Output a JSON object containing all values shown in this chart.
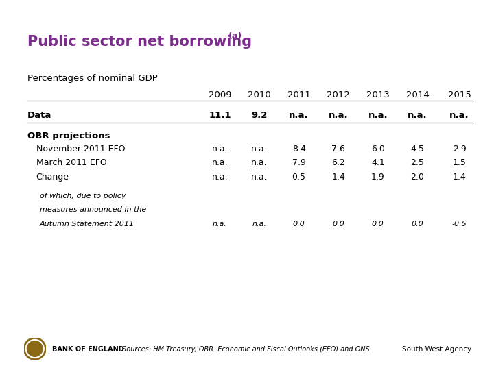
{
  "title": "Public sector net borrowing",
  "title_superscript": "(a)",
  "title_color": "#7B2D8B",
  "background_color": "#FFFFFF",
  "subtitle": "Percentages of nominal GDP",
  "years": [
    "2009",
    "2010",
    "2011",
    "2012",
    "2013",
    "2014",
    "2015"
  ],
  "rows": [
    {
      "label": "Data",
      "values": [
        "11.1",
        "9.2",
        "n.a.",
        "n.a.",
        "n.a.",
        "n.a.",
        "n.a."
      ],
      "bold": true,
      "indent": 0,
      "italic": false,
      "section_header": false
    },
    {
      "label": "OBR projections",
      "values": [
        "",
        "",
        "",
        "",
        "",
        "",
        ""
      ],
      "bold": true,
      "indent": 0,
      "italic": false,
      "section_header": true
    },
    {
      "label": "November 2011 EFO",
      "values": [
        "n.a.",
        "n.a.",
        "8.4",
        "7.6",
        "6.0",
        "4.5",
        "2.9"
      ],
      "bold": false,
      "indent": 1,
      "italic": false,
      "section_header": false
    },
    {
      "label": "March 2011 EFO",
      "values": [
        "n.a.",
        "n.a.",
        "7.9",
        "6.2",
        "4.1",
        "2.5",
        "1.5"
      ],
      "bold": false,
      "indent": 1,
      "italic": false,
      "section_header": false
    },
    {
      "label": "Change",
      "values": [
        "n.a.",
        "n.a.",
        "0.5",
        "1.4",
        "1.9",
        "2.0",
        "1.4"
      ],
      "bold": false,
      "indent": 1,
      "italic": false,
      "section_header": false
    },
    {
      "label": "of which, due to policy\nmeasures announced in the\nAutumn Statement 2011",
      "values": [
        "n.a.",
        "n.a.",
        "0.0",
        "0.0",
        "0.0",
        "0.0",
        "-0.5"
      ],
      "bold": false,
      "indent": 2,
      "italic": true,
      "section_header": false
    }
  ],
  "footer_source": "Sources: HM Treasury, OBR  Economic and Fiscal Outlooks (EFO) and ONS.",
  "footer_right": "South West Agency",
  "footer_logo_text": "BANK OF ENGLAND"
}
